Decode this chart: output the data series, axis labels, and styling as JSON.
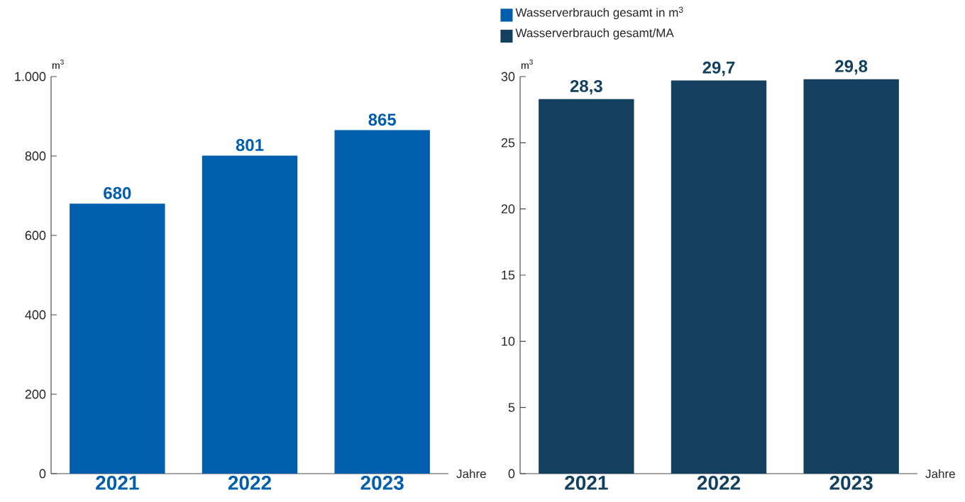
{
  "chart_data": [
    {
      "type": "bar",
      "categories": [
        "2021",
        "2022",
        "2023"
      ],
      "ylabel": "m$^{3}$",
      "xlabel": "Jahre",
      "series": [
        {
          "name": "Wasserverbrauch gesamt in m$^{3}$",
          "color": "#005ead",
          "values": [
            680,
            801,
            865
          ],
          "value_labels": [
            "680",
            "801",
            "865"
          ]
        }
      ],
      "ylim": [
        0,
        1000
      ],
      "yticks": [
        0,
        200,
        400,
        600,
        800,
        {
          "value": 1000,
          "label": "1.000"
        }
      ],
      "grid": false,
      "legend": "top"
    },
    {
      "type": "bar",
      "categories": [
        "2021",
        "2022",
        "2023"
      ],
      "ylabel": "m$^{3}$",
      "xlabel": "Jahre",
      "series": [
        {
          "name": "Wasserverbrauch gesamt/MA",
          "color": "#12405e",
          "values": [
            28.3,
            29.7,
            29.8
          ],
          "value_labels": [
            "28,3",
            "29,7",
            "29,8"
          ]
        }
      ],
      "ylim": [
        0,
        30
      ],
      "yticks": [
        0,
        5,
        10,
        15,
        20,
        25,
        30
      ],
      "grid": false,
      "legend": "top"
    }
  ]
}
